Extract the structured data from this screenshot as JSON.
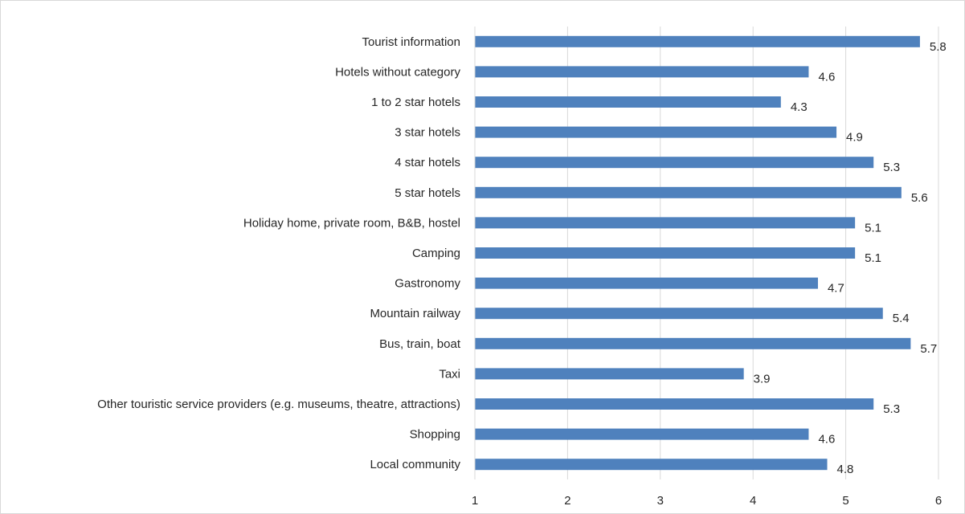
{
  "chart_data": {
    "type": "bar",
    "orientation": "horizontal",
    "title": "",
    "xlabel": "",
    "ylabel": "",
    "xlim": [
      1,
      6
    ],
    "x_ticks": [
      "1",
      "2",
      "3",
      "4",
      "5",
      "6"
    ],
    "grid": true,
    "bar_color": "#4f81bd",
    "categories": [
      "Tourist information",
      "Hotels without category",
      "1 to 2 star hotels",
      "3 star hotels",
      "4 star hotels",
      "5 star hotels",
      "Holiday home, private room, B&B, hostel",
      "Camping",
      "Gastronomy",
      "Mountain railway",
      "Bus, train, boat",
      "Taxi",
      "Other touristic service providers (e.g. museums, theatre, attractions)",
      "Shopping",
      "Local community"
    ],
    "values": [
      5.8,
      4.6,
      4.3,
      4.9,
      5.3,
      5.6,
      5.1,
      5.1,
      4.7,
      5.4,
      5.7,
      3.9,
      5.3,
      4.6,
      4.8
    ],
    "value_labels": [
      "5.8",
      "4.6",
      "4.3",
      "4.9",
      "5.3",
      "5.6",
      "5.1",
      "5.1",
      "4.7",
      "5.4",
      "5.7",
      "3.9",
      "5.3",
      "4.6",
      "4.8"
    ]
  }
}
